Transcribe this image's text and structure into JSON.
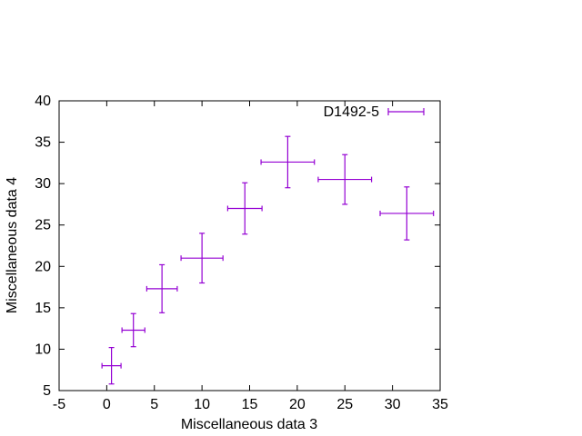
{
  "chart_data": {
    "type": "scatter",
    "title": "",
    "xlabel": "Miscellaneous data 3",
    "ylabel": "Miscellaneous data 4",
    "xlim": [
      -5,
      35
    ],
    "ylim": [
      5,
      40
    ],
    "xticks": [
      -5,
      0,
      5,
      10,
      15,
      20,
      25,
      30,
      35
    ],
    "yticks": [
      5,
      10,
      15,
      20,
      25,
      30,
      35,
      40
    ],
    "xtick_labels": [
      "-5",
      "0",
      "5",
      "10",
      "15",
      "20",
      "25",
      "30",
      "35"
    ],
    "ytick_labels": [
      "5",
      "10",
      "15",
      "20",
      "25",
      "30",
      "35",
      "40"
    ],
    "grid": false,
    "legend_position": "top-right",
    "series": [
      {
        "name": "D1492-5",
        "color": "#9400d3",
        "points": [
          {
            "x": 0.5,
            "y": 8.0,
            "xerr": 1.0,
            "yerr": 2.2
          },
          {
            "x": 2.8,
            "y": 12.3,
            "xerr": 1.2,
            "yerr": 2.0
          },
          {
            "x": 5.8,
            "y": 17.3,
            "xerr": 1.6,
            "yerr": 2.9
          },
          {
            "x": 10.0,
            "y": 21.0,
            "xerr": 2.2,
            "yerr": 3.0
          },
          {
            "x": 14.5,
            "y": 27.0,
            "xerr": 1.8,
            "yerr": 3.1
          },
          {
            "x": 19.0,
            "y": 32.6,
            "xerr": 2.8,
            "yerr": 3.1
          },
          {
            "x": 25.0,
            "y": 30.5,
            "xerr": 2.8,
            "yerr": 3.0
          },
          {
            "x": 31.5,
            "y": 26.4,
            "xerr": 2.8,
            "yerr": 3.2
          }
        ]
      }
    ]
  }
}
